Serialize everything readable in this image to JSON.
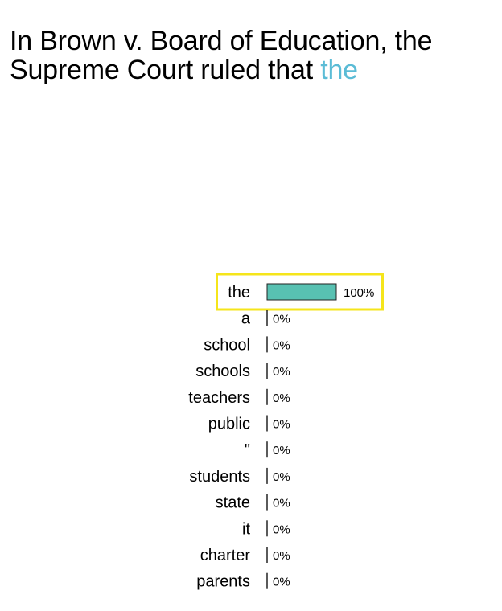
{
  "prompt": {
    "text": "In Brown v. Board of Education, the Supreme Court ruled that",
    "highlight": "the"
  },
  "colors": {
    "bar": "#58c1b2",
    "highlight_box": "#f5e51b",
    "highlight_text": "#5bbcd6"
  },
  "chart_data": {
    "type": "bar",
    "orientation": "horizontal",
    "categories": [
      "the",
      "a",
      "school",
      "schools",
      "teachers",
      "public",
      "\"",
      "students",
      "state",
      "it",
      "charter",
      "parents"
    ],
    "values": [
      100,
      0,
      0,
      0,
      0,
      0,
      0,
      0,
      0,
      0,
      0,
      0
    ],
    "value_labels": [
      "100%",
      "0%",
      "0%",
      "0%",
      "0%",
      "0%",
      "0%",
      "0%",
      "0%",
      "0%",
      "0%",
      "0%"
    ],
    "highlighted_category": "the",
    "xlim": [
      0,
      100
    ]
  }
}
